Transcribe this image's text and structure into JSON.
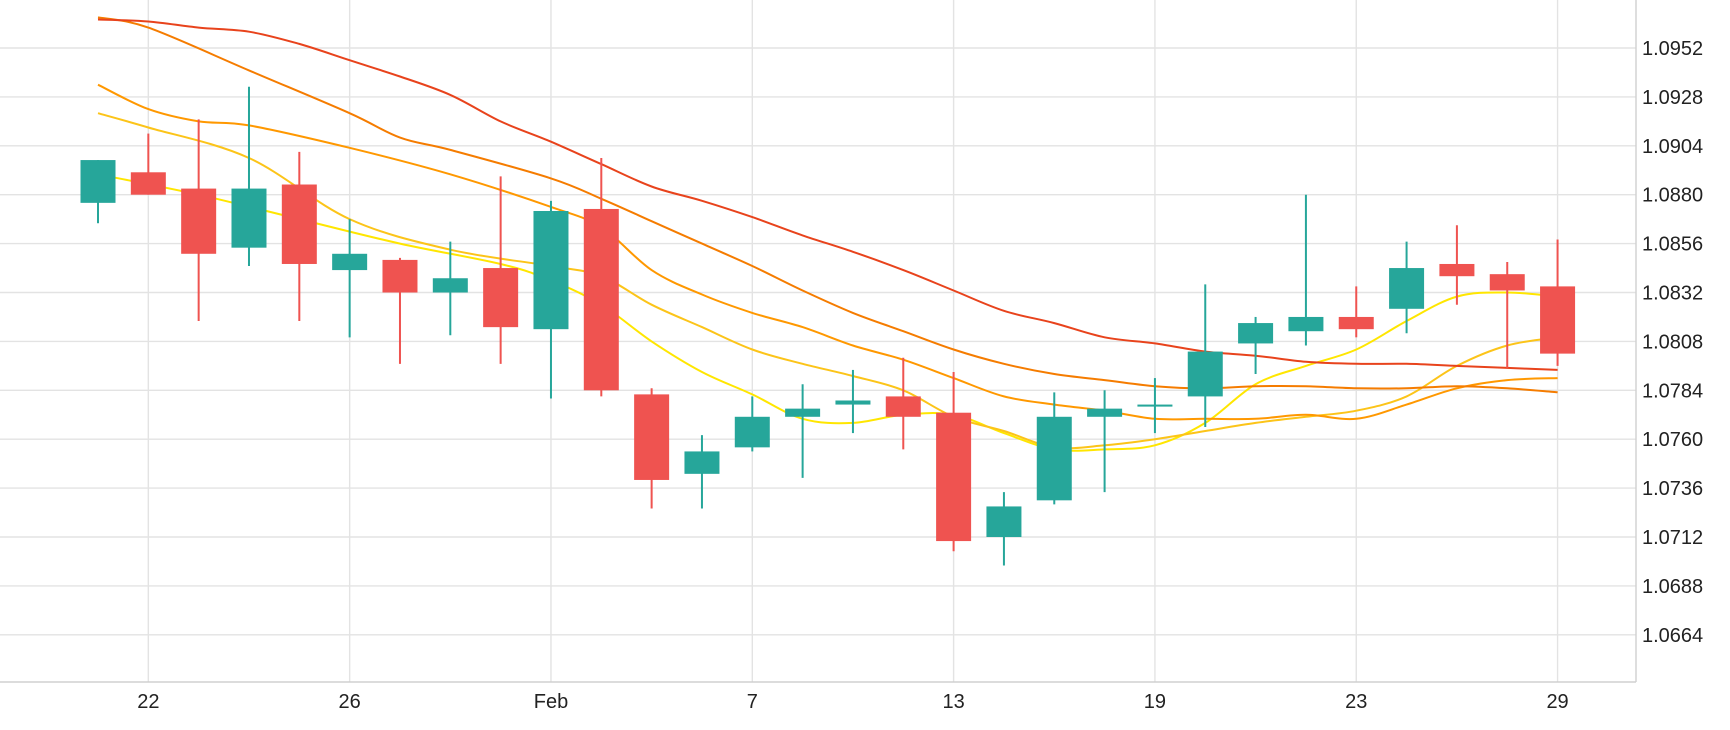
{
  "chart_data": {
    "type": "candlestick",
    "title": "",
    "xlabel": "",
    "ylabel": "",
    "ylim": [
      1.064,
      1.098
    ],
    "y_ticks": [
      "1.0952",
      "1.0928",
      "1.0904",
      "1.0880",
      "1.0856",
      "1.0832",
      "1.0808",
      "1.0784",
      "1.0760",
      "1.0736",
      "1.0712",
      "1.0688",
      "1.0664"
    ],
    "x_tick_labels": [
      {
        "label": "22",
        "index": 1
      },
      {
        "label": "26",
        "index": 5
      },
      {
        "label": "Feb",
        "index": 9
      },
      {
        "label": "7",
        "index": 13
      },
      {
        "label": "13",
        "index": 17
      },
      {
        "label": "19",
        "index": 21
      },
      {
        "label": "23",
        "index": 25
      },
      {
        "label": "29",
        "index": 29
      }
    ],
    "colors": {
      "up": "#26a69a",
      "down": "#ef5350",
      "grid": "#e3e3e3"
    },
    "candles": [
      {
        "o": 1.0876,
        "h": 1.0897,
        "l": 1.0866,
        "c": 1.0897
      },
      {
        "o": 1.0891,
        "h": 1.091,
        "l": 1.088,
        "c": 1.088
      },
      {
        "o": 1.0883,
        "h": 1.0917,
        "l": 1.0818,
        "c": 1.0851
      },
      {
        "o": 1.0854,
        "h": 1.0933,
        "l": 1.0845,
        "c": 1.0883
      },
      {
        "o": 1.0885,
        "h": 1.0901,
        "l": 1.0818,
        "c": 1.0846
      },
      {
        "o": 1.0843,
        "h": 1.0868,
        "l": 1.081,
        "c": 1.0851
      },
      {
        "o": 1.0848,
        "h": 1.0849,
        "l": 1.0797,
        "c": 1.0832
      },
      {
        "o": 1.0832,
        "h": 1.0857,
        "l": 1.0811,
        "c": 1.0839
      },
      {
        "o": 1.0844,
        "h": 1.0889,
        "l": 1.0797,
        "c": 1.0815
      },
      {
        "o": 1.0814,
        "h": 1.0877,
        "l": 1.078,
        "c": 1.0872
      },
      {
        "o": 1.0873,
        "h": 1.0898,
        "l": 1.0781,
        "c": 1.0784
      },
      {
        "o": 1.0782,
        "h": 1.0785,
        "l": 1.0726,
        "c": 1.074
      },
      {
        "o": 1.0743,
        "h": 1.0762,
        "l": 1.0726,
        "c": 1.0754
      },
      {
        "o": 1.0756,
        "h": 1.0781,
        "l": 1.0754,
        "c": 1.0771
      },
      {
        "o": 1.0771,
        "h": 1.0787,
        "l": 1.0741,
        "c": 1.0775
      },
      {
        "o": 1.0777,
        "h": 1.0794,
        "l": 1.0763,
        "c": 1.0779
      },
      {
        "o": 1.0781,
        "h": 1.08,
        "l": 1.0755,
        "c": 1.0771
      },
      {
        "o": 1.0773,
        "h": 1.0793,
        "l": 1.0705,
        "c": 1.071
      },
      {
        "o": 1.0712,
        "h": 1.0734,
        "l": 1.0698,
        "c": 1.0727
      },
      {
        "o": 1.073,
        "h": 1.0783,
        "l": 1.0728,
        "c": 1.0771
      },
      {
        "o": 1.0771,
        "h": 1.0784,
        "l": 1.0734,
        "c": 1.0775
      },
      {
        "o": 1.0776,
        "h": 1.079,
        "l": 1.0763,
        "c": 1.0777
      },
      {
        "o": 1.0781,
        "h": 1.0836,
        "l": 1.0766,
        "c": 1.0803
      },
      {
        "o": 1.0807,
        "h": 1.082,
        "l": 1.0792,
        "c": 1.0817
      },
      {
        "o": 1.0813,
        "h": 1.088,
        "l": 1.0806,
        "c": 1.082
      },
      {
        "o": 1.082,
        "h": 1.0835,
        "l": 1.081,
        "c": 1.0814
      },
      {
        "o": 1.0824,
        "h": 1.0857,
        "l": 1.0812,
        "c": 1.0844
      },
      {
        "o": 1.0846,
        "h": 1.0865,
        "l": 1.0826,
        "c": 1.084
      },
      {
        "o": 1.0841,
        "h": 1.0847,
        "l": 1.0795,
        "c": 1.0833
      },
      {
        "o": 1.0835,
        "h": 1.0858,
        "l": 1.0796,
        "c": 1.0802
      }
    ],
    "series": [
      {
        "color": "#ffe600",
        "values": [
          [
            0,
            1.089
          ],
          [
            2,
            1.088
          ],
          [
            4,
            1.0868
          ],
          [
            6,
            1.0856
          ],
          [
            8,
            1.0846
          ],
          [
            9,
            1.0838
          ],
          [
            10,
            1.0826
          ],
          [
            11,
            1.0808
          ],
          [
            12,
            1.0793
          ],
          [
            13,
            1.0782
          ],
          [
            14,
            1.077
          ],
          [
            15,
            1.0768
          ],
          [
            16,
            1.0772
          ],
          [
            17,
            1.0772
          ],
          [
            18,
            1.0763
          ],
          [
            19,
            1.0755
          ],
          [
            20,
            1.0755
          ],
          [
            21,
            1.0757
          ],
          [
            22,
            1.0768
          ],
          [
            23,
            1.0787
          ],
          [
            24,
            1.0796
          ],
          [
            25,
            1.0804
          ],
          [
            26,
            1.0818
          ],
          [
            27,
            1.083
          ],
          [
            28,
            1.0832
          ],
          [
            29,
            1.083
          ]
        ]
      },
      {
        "color": "#fcc419",
        "values": [
          [
            0,
            1.092
          ],
          [
            1,
            1.0913
          ],
          [
            3,
            1.0898
          ],
          [
            5,
            1.0868
          ],
          [
            7,
            1.0853
          ],
          [
            9,
            1.0845
          ],
          [
            10,
            1.084
          ],
          [
            11,
            1.0826
          ],
          [
            12,
            1.0815
          ],
          [
            13,
            1.0804
          ],
          [
            14,
            1.0797
          ],
          [
            15,
            1.0791
          ],
          [
            16,
            1.0784
          ],
          [
            17,
            1.0771
          ],
          [
            18,
            1.0764
          ],
          [
            19,
            1.0756
          ],
          [
            20,
            1.0757
          ],
          [
            21,
            1.076
          ],
          [
            22,
            1.0764
          ],
          [
            23,
            1.0768
          ],
          [
            24,
            1.0771
          ],
          [
            25,
            1.0774
          ],
          [
            26,
            1.0781
          ],
          [
            27,
            1.0796
          ],
          [
            28,
            1.0806
          ],
          [
            29,
            1.081
          ]
        ]
      },
      {
        "color": "#ff9800",
        "values": [
          [
            0,
            1.0934
          ],
          [
            1,
            1.0922
          ],
          [
            2,
            1.0916
          ],
          [
            3,
            1.0914
          ],
          [
            5,
            1.0903
          ],
          [
            7,
            1.089
          ],
          [
            9,
            1.0874
          ],
          [
            10,
            1.0864
          ],
          [
            11,
            1.0843
          ],
          [
            12,
            1.0831
          ],
          [
            13,
            1.0822
          ],
          [
            14,
            1.0815
          ],
          [
            15,
            1.0806
          ],
          [
            16,
            1.0799
          ],
          [
            17,
            1.079
          ],
          [
            18,
            1.0781
          ],
          [
            19,
            1.0777
          ],
          [
            20,
            1.0774
          ],
          [
            21,
            1.077
          ],
          [
            22,
            1.077
          ],
          [
            23,
            1.077
          ],
          [
            24,
            1.0772
          ],
          [
            25,
            1.077
          ],
          [
            26,
            1.0777
          ],
          [
            27,
            1.0785
          ],
          [
            28,
            1.0789
          ],
          [
            29,
            1.079
          ]
        ]
      },
      {
        "color": "#f57c00",
        "values": [
          [
            0,
            1.0967
          ],
          [
            1,
            1.0962
          ],
          [
            3,
            1.0941
          ],
          [
            5,
            1.092
          ],
          [
            6,
            1.0908
          ],
          [
            7,
            1.0902
          ],
          [
            9,
            1.0888
          ],
          [
            10,
            1.0878
          ],
          [
            11,
            1.0867
          ],
          [
            12,
            1.0856
          ],
          [
            13,
            1.0845
          ],
          [
            14,
            1.0833
          ],
          [
            15,
            1.0822
          ],
          [
            16,
            1.0813
          ],
          [
            17,
            1.0804
          ],
          [
            18,
            1.0797
          ],
          [
            19,
            1.0792
          ],
          [
            20,
            1.0789
          ],
          [
            21,
            1.0786
          ],
          [
            22,
            1.0785
          ],
          [
            23,
            1.0786
          ],
          [
            24,
            1.0786
          ],
          [
            25,
            1.0785
          ],
          [
            26,
            1.0785
          ],
          [
            27,
            1.0786
          ],
          [
            28,
            1.0785
          ],
          [
            29,
            1.0783
          ]
        ]
      },
      {
        "color": "#e8431c",
        "values": [
          [
            0,
            1.0966
          ],
          [
            1,
            1.0965
          ],
          [
            2,
            1.0962
          ],
          [
            3,
            1.096
          ],
          [
            4,
            1.0954
          ],
          [
            5,
            1.0946
          ],
          [
            6,
            1.0938
          ],
          [
            7,
            1.0929
          ],
          [
            8,
            1.0916
          ],
          [
            9,
            1.0906
          ],
          [
            10,
            1.0895
          ],
          [
            11,
            1.0884
          ],
          [
            12,
            1.0877
          ],
          [
            13,
            1.0869
          ],
          [
            14,
            1.086
          ],
          [
            15,
            1.0852
          ],
          [
            16,
            1.0843
          ],
          [
            17,
            1.0833
          ],
          [
            18,
            1.0823
          ],
          [
            19,
            1.0817
          ],
          [
            20,
            1.081
          ],
          [
            21,
            1.0807
          ],
          [
            22,
            1.0803
          ],
          [
            23,
            1.0801
          ],
          [
            24,
            1.0798
          ],
          [
            25,
            1.0797
          ],
          [
            26,
            1.0797
          ],
          [
            27,
            1.0796
          ],
          [
            28,
            1.0795
          ],
          [
            29,
            1.0794
          ]
        ]
      }
    ]
  }
}
